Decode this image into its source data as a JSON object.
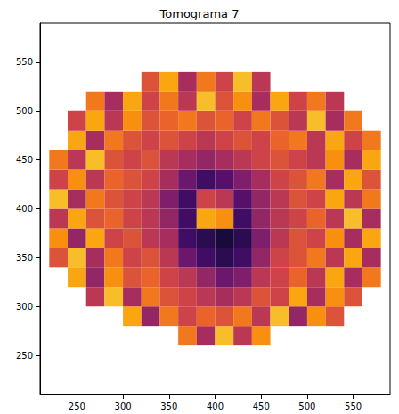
{
  "chart_data": {
    "type": "heatmap",
    "title": "Tomograma 7",
    "x": [
      230,
      250,
      270,
      290,
      310,
      330,
      350,
      370,
      390,
      410,
      430,
      450,
      470,
      490,
      510,
      530,
      550,
      570
    ],
    "y": [
      270,
      290,
      310,
      330,
      350,
      370,
      390,
      410,
      430,
      450,
      470,
      490,
      510,
      530
    ],
    "z": [
      [
        null,
        null,
        null,
        null,
        null,
        null,
        null,
        0.7,
        0.45,
        0.85,
        0.5,
        0.75,
        null,
        null,
        null,
        null,
        null,
        null
      ],
      [
        null,
        null,
        null,
        null,
        0.8,
        0.4,
        0.7,
        0.55,
        0.65,
        0.6,
        0.7,
        0.5,
        0.85,
        0.4,
        0.75,
        0.6,
        null,
        null
      ],
      [
        null,
        null,
        0.5,
        0.85,
        0.45,
        0.7,
        0.6,
        0.55,
        0.5,
        0.45,
        0.5,
        0.6,
        0.55,
        0.8,
        0.45,
        0.75,
        0.6,
        null
      ],
      [
        null,
        0.8,
        0.4,
        0.75,
        0.6,
        0.65,
        0.55,
        0.5,
        0.4,
        0.3,
        0.35,
        0.5,
        0.55,
        0.65,
        0.5,
        0.8,
        0.45,
        0.7
      ],
      [
        0.6,
        0.85,
        0.45,
        0.7,
        0.55,
        0.6,
        0.5,
        0.3,
        0.2,
        0.15,
        0.2,
        0.4,
        0.55,
        0.6,
        0.7,
        0.5,
        0.8,
        0.45
      ],
      [
        0.75,
        0.4,
        0.8,
        0.55,
        0.6,
        0.5,
        0.45,
        0.2,
        0.15,
        0.1,
        0.15,
        0.35,
        0.5,
        0.6,
        0.55,
        0.75,
        0.45,
        0.8
      ],
      [
        0.5,
        0.8,
        0.6,
        0.65,
        0.55,
        0.5,
        0.4,
        0.2,
        0.8,
        0.75,
        0.2,
        0.4,
        0.5,
        0.55,
        0.65,
        0.5,
        0.85,
        0.45
      ],
      [
        0.85,
        0.45,
        0.7,
        0.6,
        0.55,
        0.5,
        0.35,
        0.2,
        0.55,
        0.5,
        0.25,
        0.4,
        0.5,
        0.6,
        0.55,
        0.8,
        0.5,
        0.7
      ],
      [
        0.55,
        0.75,
        0.5,
        0.65,
        0.6,
        0.55,
        0.45,
        0.3,
        0.2,
        0.25,
        0.35,
        0.45,
        0.55,
        0.6,
        0.7,
        0.45,
        0.8,
        0.6
      ],
      [
        0.7,
        0.5,
        0.85,
        0.6,
        0.55,
        0.6,
        0.5,
        0.45,
        0.4,
        0.45,
        0.5,
        0.55,
        0.6,
        0.55,
        0.5,
        0.75,
        0.45,
        0.8
      ],
      [
        null,
        0.8,
        0.45,
        0.7,
        0.6,
        0.55,
        0.6,
        0.55,
        0.5,
        0.55,
        0.6,
        0.55,
        0.65,
        0.7,
        0.5,
        0.8,
        0.55,
        0.7
      ],
      [
        null,
        0.55,
        0.8,
        0.5,
        0.75,
        0.6,
        0.65,
        0.7,
        0.6,
        0.65,
        0.55,
        0.7,
        0.6,
        0.5,
        0.85,
        0.45,
        0.7,
        null
      ],
      [
        null,
        null,
        0.7,
        0.45,
        0.8,
        0.55,
        0.7,
        0.5,
        0.85,
        0.6,
        0.75,
        0.45,
        0.8,
        0.55,
        0.7,
        0.5,
        null,
        null
      ],
      [
        null,
        null,
        null,
        null,
        null,
        0.6,
        0.8,
        0.45,
        0.7,
        0.55,
        0.85,
        0.5,
        null,
        null,
        null,
        null,
        null,
        null
      ]
    ],
    "zlim": [
      0,
      1
    ],
    "xlim": [
      210,
      590
    ],
    "ylim": [
      210,
      590
    ],
    "xticks": [
      250,
      300,
      350,
      400,
      450,
      500,
      550
    ],
    "yticks": [
      250,
      300,
      350,
      400,
      450,
      500,
      550
    ],
    "grid": false
  }
}
